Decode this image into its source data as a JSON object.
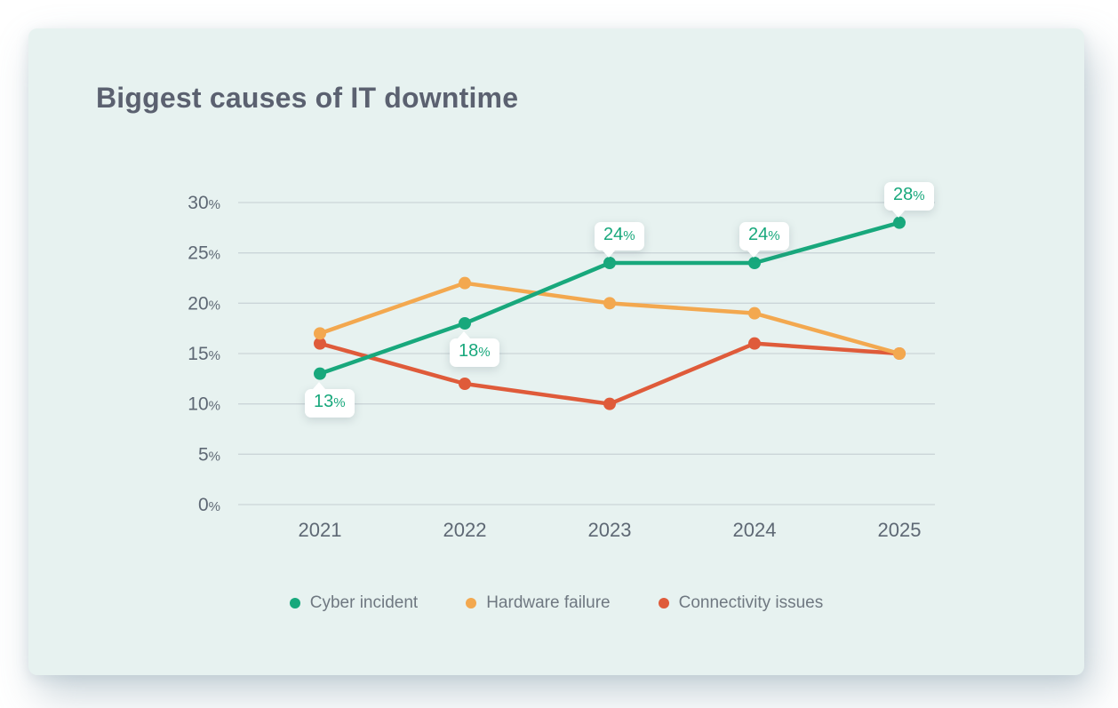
{
  "card": {
    "title": "Biggest causes of IT downtime"
  },
  "colors": {
    "page_bg": "#ffffff",
    "card_bg": "#e7f2f0",
    "title_text": "#5b6170",
    "axis_text": "#5e6874",
    "gridline": "#cbd5d8",
    "legend_text": "#6f7881",
    "callout_bg": "#ffffff",
    "cyber_incident": "#18a87c",
    "hardware_failure": "#f3a84f",
    "connectivity_issues": "#df5b3a"
  },
  "chart_data": {
    "type": "line",
    "title": "Biggest causes of IT downtime",
    "categories": [
      "2021",
      "2022",
      "2023",
      "2024",
      "2025"
    ],
    "series": [
      {
        "name": "Cyber incident",
        "color": "#18a87c",
        "values": [
          13,
          18,
          24,
          24,
          28
        ]
      },
      {
        "name": "Hardware failure",
        "color": "#f3a84f",
        "values": [
          17,
          22,
          20,
          19,
          15
        ]
      },
      {
        "name": "Connectivity issues",
        "color": "#df5b3a",
        "values": [
          16,
          12,
          10,
          16,
          15
        ]
      }
    ],
    "ylim": [
      0,
      30
    ],
    "ytick_step": 5,
    "ytick_labels": [
      "0%",
      "5%",
      "10%",
      "15%",
      "20%",
      "25%",
      "30%"
    ],
    "xlabel": "",
    "ylabel": "",
    "grid": "horizontal",
    "legend_position": "bottom",
    "annotations": [
      {
        "series": "Cyber incident",
        "category": "2021",
        "text": "13%",
        "position": "below"
      },
      {
        "series": "Cyber incident",
        "category": "2022",
        "text": "18%",
        "position": "below"
      },
      {
        "series": "Cyber incident",
        "category": "2023",
        "text": "24%",
        "position": "above"
      },
      {
        "series": "Cyber incident",
        "category": "2024",
        "text": "24%",
        "position": "above"
      },
      {
        "series": "Cyber incident",
        "category": "2025",
        "text": "28%",
        "position": "above"
      }
    ]
  }
}
